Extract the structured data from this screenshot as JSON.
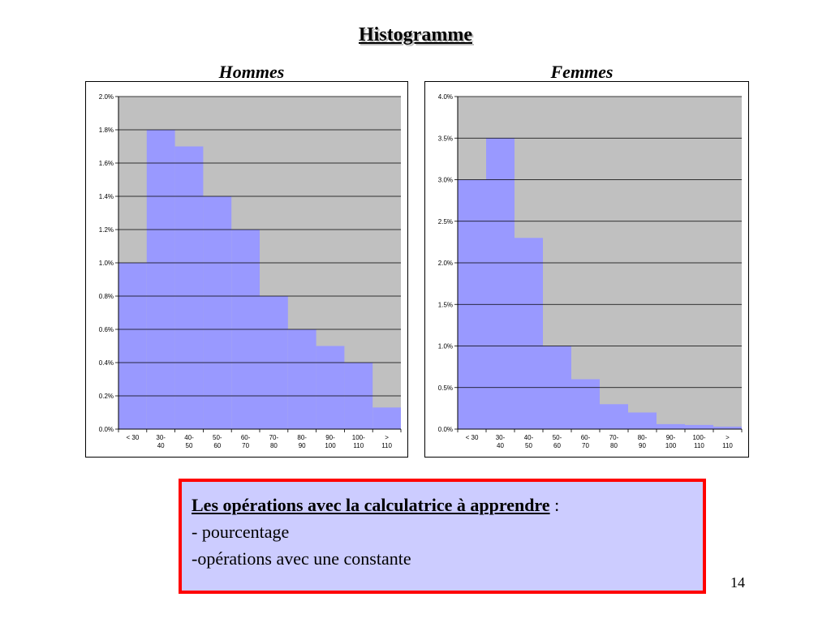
{
  "slide": {
    "title": "Histogramme",
    "page_number": "14"
  },
  "note": {
    "heading": "Les opérations avec la calculatrice à apprendre",
    "heading_suffix": " :",
    "lines": [
      "- pourcentage",
      "-opérations avec une constante"
    ]
  },
  "colors": {
    "bar_fill": "#9999ff",
    "plot_background": "#c0c0c0",
    "gridline": "#000000",
    "note_border": "#ff0000",
    "note_background": "#ccccff"
  },
  "chart_data": [
    {
      "type": "bar",
      "title": "Hommes",
      "categories": [
        [
          "< 30"
        ],
        [
          "30-",
          "40"
        ],
        [
          "40-",
          "50"
        ],
        [
          "50-",
          "60"
        ],
        [
          "60-",
          "70"
        ],
        [
          "70-",
          "80"
        ],
        [
          "80-",
          "90"
        ],
        [
          "90-",
          "100"
        ],
        [
          "100-",
          "110"
        ],
        [
          ">",
          "110"
        ]
      ],
      "values": [
        0.01,
        0.018,
        0.017,
        0.014,
        0.012,
        0.008,
        0.006,
        0.005,
        0.004,
        0.0013
      ],
      "ylim": [
        0,
        0.02
      ],
      "yticks": [
        "0.0%",
        "0.2%",
        "0.4%",
        "0.6%",
        "0.8%",
        "1.0%",
        "1.2%",
        "1.4%",
        "1.6%",
        "1.8%",
        "2.0%"
      ],
      "grid": true
    },
    {
      "type": "bar",
      "title": "Femmes",
      "categories": [
        [
          "< 30"
        ],
        [
          "30-",
          "40"
        ],
        [
          "40-",
          "50"
        ],
        [
          "50-",
          "60"
        ],
        [
          "60-",
          "70"
        ],
        [
          "70-",
          "80"
        ],
        [
          "80-",
          "90"
        ],
        [
          "90-",
          "100"
        ],
        [
          "100-",
          "110"
        ],
        [
          ">",
          "110"
        ]
      ],
      "values": [
        0.03,
        0.035,
        0.023,
        0.01,
        0.006,
        0.003,
        0.002,
        0.0006,
        0.0005,
        0.0003
      ],
      "ylim": [
        0,
        0.04
      ],
      "yticks": [
        "0.0%",
        "0.5%",
        "1.0%",
        "1.5%",
        "2.0%",
        "2.5%",
        "3.0%",
        "3.5%",
        "4.0%"
      ],
      "grid": true
    }
  ]
}
